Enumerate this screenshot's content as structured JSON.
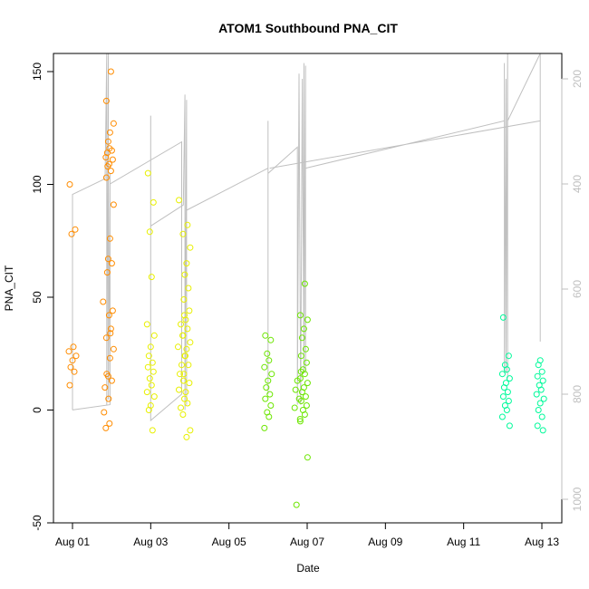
{
  "chart_data": {
    "type": "scatter",
    "title": "ATOM1 Southbound PNA_CIT",
    "xlabel": "Date",
    "ylabel": "PNA_CIT",
    "xlim": [
      "2023-08-01",
      "2023-08-13"
    ],
    "x_ticks": [
      "Aug 01",
      "Aug 03",
      "Aug 05",
      "Aug 07",
      "Aug 09",
      "Aug 11",
      "Aug 13"
    ],
    "ylim": [
      -50,
      150
    ],
    "y_ticks": [
      -50,
      0,
      50,
      100,
      150
    ],
    "y2_ticks": [
      200,
      400,
      600,
      800,
      1000
    ],
    "y2_range": [
      1050,
      150
    ],
    "grid": false,
    "series": [
      {
        "color": "#FF8C00",
        "points": [
          {
            "x": "2023-08-01 00:00",
            "y": 100
          },
          {
            "x": "2023-08-01 00:00",
            "y": 80
          },
          {
            "x": "2023-08-01 00:00",
            "y": 78
          },
          {
            "x": "2023-08-01 00:00",
            "y": 28
          },
          {
            "x": "2023-08-01 00:00",
            "y": 26
          },
          {
            "x": "2023-08-01 00:00",
            "y": 24
          },
          {
            "x": "2023-08-01 00:00",
            "y": 22
          },
          {
            "x": "2023-08-01 00:00",
            "y": 19
          },
          {
            "x": "2023-08-01 00:00",
            "y": 17
          },
          {
            "x": "2023-08-01 00:00",
            "y": 11
          },
          {
            "x": "2023-08-01 21:00",
            "y": 116
          },
          {
            "x": "2023-08-01 21:00",
            "y": 112
          },
          {
            "x": "2023-08-01 21:00",
            "y": 108
          },
          {
            "x": "2023-08-01 21:00",
            "y": 48
          },
          {
            "x": "2023-08-01 21:00",
            "y": 34
          },
          {
            "x": "2023-08-01 21:00",
            "y": 16
          },
          {
            "x": "2023-08-01 21:00",
            "y": 10
          },
          {
            "x": "2023-08-01 21:00",
            "y": 5
          },
          {
            "x": "2023-08-01 21:00",
            "y": -1
          },
          {
            "x": "2023-08-01 21:00",
            "y": -6
          },
          {
            "x": "2023-08-01 21:00",
            "y": -8
          },
          {
            "x": "2023-08-01 23:00",
            "y": 150
          },
          {
            "x": "2023-08-01 23:00",
            "y": 137
          },
          {
            "x": "2023-08-01 23:00",
            "y": 127
          },
          {
            "x": "2023-08-01 23:00",
            "y": 123
          },
          {
            "x": "2023-08-01 23:00",
            "y": 119
          },
          {
            "x": "2023-08-01 23:00",
            "y": 115
          },
          {
            "x": "2023-08-01 23:00",
            "y": 114
          },
          {
            "x": "2023-08-01 23:00",
            "y": 111
          },
          {
            "x": "2023-08-01 23:00",
            "y": 109
          },
          {
            "x": "2023-08-01 23:00",
            "y": 106
          },
          {
            "x": "2023-08-01 23:00",
            "y": 103
          },
          {
            "x": "2023-08-01 23:00",
            "y": 91
          },
          {
            "x": "2023-08-01 23:00",
            "y": 76
          },
          {
            "x": "2023-08-01 23:00",
            "y": 67
          },
          {
            "x": "2023-08-01 23:00",
            "y": 65
          },
          {
            "x": "2023-08-01 23:00",
            "y": 61
          },
          {
            "x": "2023-08-01 23:00",
            "y": 44
          },
          {
            "x": "2023-08-01 23:00",
            "y": 42
          },
          {
            "x": "2023-08-01 23:00",
            "y": 36
          },
          {
            "x": "2023-08-01 23:00",
            "y": 32
          },
          {
            "x": "2023-08-01 23:00",
            "y": 27
          },
          {
            "x": "2023-08-01 23:00",
            "y": 23
          },
          {
            "x": "2023-08-01 23:00",
            "y": 15
          },
          {
            "x": "2023-08-01 23:00",
            "y": 13
          }
        ]
      },
      {
        "color": "#E8F000",
        "points": [
          {
            "x": "2023-08-03 00:00",
            "y": 105
          },
          {
            "x": "2023-08-03 00:00",
            "y": 92
          },
          {
            "x": "2023-08-03 00:00",
            "y": 79
          },
          {
            "x": "2023-08-03 00:00",
            "y": 59
          },
          {
            "x": "2023-08-03 00:00",
            "y": 38
          },
          {
            "x": "2023-08-03 00:00",
            "y": 33
          },
          {
            "x": "2023-08-03 00:00",
            "y": 28
          },
          {
            "x": "2023-08-03 00:00",
            "y": 24
          },
          {
            "x": "2023-08-03 00:00",
            "y": 21
          },
          {
            "x": "2023-08-03 00:00",
            "y": 19
          },
          {
            "x": "2023-08-03 00:00",
            "y": 17
          },
          {
            "x": "2023-08-03 00:00",
            "y": 14
          },
          {
            "x": "2023-08-03 00:00",
            "y": 11
          },
          {
            "x": "2023-08-03 00:00",
            "y": 8
          },
          {
            "x": "2023-08-03 00:00",
            "y": 6
          },
          {
            "x": "2023-08-03 00:00",
            "y": 2
          },
          {
            "x": "2023-08-03 00:00",
            "y": 0
          },
          {
            "x": "2023-08-03 00:00",
            "y": -9
          },
          {
            "x": "2023-08-03 19:00",
            "y": 93
          },
          {
            "x": "2023-08-03 19:00",
            "y": 42
          },
          {
            "x": "2023-08-03 19:00",
            "y": 38
          },
          {
            "x": "2023-08-03 19:00",
            "y": 33
          },
          {
            "x": "2023-08-03 19:00",
            "y": 28
          },
          {
            "x": "2023-08-03 19:00",
            "y": 24
          },
          {
            "x": "2023-08-03 19:00",
            "y": 20
          },
          {
            "x": "2023-08-03 19:00",
            "y": 16
          },
          {
            "x": "2023-08-03 19:00",
            "y": 13
          },
          {
            "x": "2023-08-03 19:00",
            "y": 9
          },
          {
            "x": "2023-08-03 19:00",
            "y": 5
          },
          {
            "x": "2023-08-03 19:00",
            "y": 1
          },
          {
            "x": "2023-08-03 22:00",
            "y": 82
          },
          {
            "x": "2023-08-03 22:00",
            "y": 78
          },
          {
            "x": "2023-08-03 22:00",
            "y": 72
          },
          {
            "x": "2023-08-03 22:00",
            "y": 65
          },
          {
            "x": "2023-08-03 22:00",
            "y": 60
          },
          {
            "x": "2023-08-03 22:00",
            "y": 54
          },
          {
            "x": "2023-08-03 22:00",
            "y": 49
          },
          {
            "x": "2023-08-03 22:00",
            "y": 44
          },
          {
            "x": "2023-08-03 22:00",
            "y": 40
          },
          {
            "x": "2023-08-03 22:00",
            "y": 36
          },
          {
            "x": "2023-08-03 22:00",
            "y": 33
          },
          {
            "x": "2023-08-03 22:00",
            "y": 30
          },
          {
            "x": "2023-08-03 22:00",
            "y": 27
          },
          {
            "x": "2023-08-03 22:00",
            "y": 24
          },
          {
            "x": "2023-08-03 22:00",
            "y": 20
          },
          {
            "x": "2023-08-03 22:00",
            "y": 16
          },
          {
            "x": "2023-08-03 22:00",
            "y": 12
          },
          {
            "x": "2023-08-03 22:00",
            "y": 8
          },
          {
            "x": "2023-08-03 22:00",
            "y": 3
          },
          {
            "x": "2023-08-03 22:00",
            "y": -2
          },
          {
            "x": "2023-08-03 22:00",
            "y": -9
          },
          {
            "x": "2023-08-03 22:00",
            "y": -12
          }
        ]
      },
      {
        "color": "#6CE600",
        "points": [
          {
            "x": "2023-08-06 00:00",
            "y": 33
          },
          {
            "x": "2023-08-06 00:00",
            "y": 31
          },
          {
            "x": "2023-08-06 00:00",
            "y": 25
          },
          {
            "x": "2023-08-06 00:00",
            "y": 22
          },
          {
            "x": "2023-08-06 00:00",
            "y": 19
          },
          {
            "x": "2023-08-06 00:00",
            "y": 16
          },
          {
            "x": "2023-08-06 00:00",
            "y": 13
          },
          {
            "x": "2023-08-06 00:00",
            "y": 10
          },
          {
            "x": "2023-08-06 00:00",
            "y": 7
          },
          {
            "x": "2023-08-06 00:00",
            "y": 5
          },
          {
            "x": "2023-08-06 00:00",
            "y": 2
          },
          {
            "x": "2023-08-06 00:00",
            "y": -1
          },
          {
            "x": "2023-08-06 00:00",
            "y": -3
          },
          {
            "x": "2023-08-06 00:00",
            "y": -8
          },
          {
            "x": "2023-08-06 18:00",
            "y": 17
          },
          {
            "x": "2023-08-06 18:00",
            "y": 13
          },
          {
            "x": "2023-08-06 18:00",
            "y": 9
          },
          {
            "x": "2023-08-06 18:00",
            "y": 5
          },
          {
            "x": "2023-08-06 18:00",
            "y": 1
          },
          {
            "x": "2023-08-06 18:00",
            "y": -4
          },
          {
            "x": "2023-08-06 18:00",
            "y": -42
          },
          {
            "x": "2023-08-06 22:00",
            "y": 56
          },
          {
            "x": "2023-08-06 22:00",
            "y": 42
          },
          {
            "x": "2023-08-06 22:00",
            "y": 40
          },
          {
            "x": "2023-08-06 22:00",
            "y": 36
          },
          {
            "x": "2023-08-06 22:00",
            "y": 32
          },
          {
            "x": "2023-08-06 22:00",
            "y": 27
          },
          {
            "x": "2023-08-06 22:00",
            "y": 24
          },
          {
            "x": "2023-08-06 22:00",
            "y": 21
          },
          {
            "x": "2023-08-06 22:00",
            "y": 18
          },
          {
            "x": "2023-08-06 22:00",
            "y": 16
          },
          {
            "x": "2023-08-06 22:00",
            "y": 14
          },
          {
            "x": "2023-08-06 22:00",
            "y": 12
          },
          {
            "x": "2023-08-06 22:00",
            "y": 10
          },
          {
            "x": "2023-08-06 22:00",
            "y": 8
          },
          {
            "x": "2023-08-06 22:00",
            "y": 6
          },
          {
            "x": "2023-08-06 22:00",
            "y": 4
          },
          {
            "x": "2023-08-06 22:00",
            "y": 2
          },
          {
            "x": "2023-08-06 22:00",
            "y": 0
          },
          {
            "x": "2023-08-06 22:00",
            "y": -2
          },
          {
            "x": "2023-08-06 22:00",
            "y": -5
          },
          {
            "x": "2023-08-06 22:00",
            "y": -21
          }
        ]
      },
      {
        "color": "#00FA9A",
        "points": [
          {
            "x": "2023-08-12 02:00",
            "y": 41
          },
          {
            "x": "2023-08-12 02:00",
            "y": 24
          },
          {
            "x": "2023-08-12 02:00",
            "y": 20
          },
          {
            "x": "2023-08-12 02:00",
            "y": 18
          },
          {
            "x": "2023-08-12 02:00",
            "y": 16
          },
          {
            "x": "2023-08-12 02:00",
            "y": 14
          },
          {
            "x": "2023-08-12 02:00",
            "y": 12
          },
          {
            "x": "2023-08-12 02:00",
            "y": 10
          },
          {
            "x": "2023-08-12 02:00",
            "y": 8
          },
          {
            "x": "2023-08-12 02:00",
            "y": 6
          },
          {
            "x": "2023-08-12 02:00",
            "y": 4
          },
          {
            "x": "2023-08-12 02:00",
            "y": 2
          },
          {
            "x": "2023-08-12 02:00",
            "y": 0
          },
          {
            "x": "2023-08-12 02:00",
            "y": -3
          },
          {
            "x": "2023-08-12 02:00",
            "y": -7
          },
          {
            "x": "2023-08-12 23:00",
            "y": 22
          },
          {
            "x": "2023-08-12 23:00",
            "y": 20
          },
          {
            "x": "2023-08-12 23:00",
            "y": 17
          },
          {
            "x": "2023-08-12 23:00",
            "y": 15
          },
          {
            "x": "2023-08-12 23:00",
            "y": 13
          },
          {
            "x": "2023-08-12 23:00",
            "y": 11
          },
          {
            "x": "2023-08-12 23:00",
            "y": 9
          },
          {
            "x": "2023-08-12 23:00",
            "y": 7
          },
          {
            "x": "2023-08-12 23:00",
            "y": 5
          },
          {
            "x": "2023-08-12 23:00",
            "y": 3
          },
          {
            "x": "2023-08-12 23:00",
            "y": 0
          },
          {
            "x": "2023-08-12 23:00",
            "y": -3
          },
          {
            "x": "2023-08-12 23:00",
            "y": -7
          },
          {
            "x": "2023-08-12 23:00",
            "y": -9
          }
        ]
      }
    ],
    "line_series": {
      "color": "#C0C0C0",
      "axis": "right",
      "segments": [
        [
          {
            "x": "2023-08-01 00:00",
            "y": 740
          },
          {
            "x": "2023-08-01 00:00",
            "y": 600
          },
          {
            "x": "2023-08-01 00:00",
            "y": 830
          },
          {
            "x": "2023-08-01 00:00",
            "y": 420
          },
          {
            "x": "2023-08-01 20:00",
            "y": 390
          },
          {
            "x": "2023-08-01 21:00",
            "y": 150
          },
          {
            "x": "2023-08-01 21:00",
            "y": 820
          },
          {
            "x": "2023-08-01 22:00",
            "y": 150
          },
          {
            "x": "2023-08-01 22:00",
            "y": 810
          },
          {
            "x": "2023-08-01 23:00",
            "y": 380
          },
          {
            "x": "2023-08-01 23:00",
            "y": 700
          },
          {
            "x": "2023-08-01 23:00",
            "y": 820
          },
          {
            "x": "2023-08-01 00:00",
            "y": 830
          }
        ],
        [
          {
            "x": "2023-08-01 23:00",
            "y": 400
          },
          {
            "x": "2023-08-03 19:00",
            "y": 320
          },
          {
            "x": "2023-08-03 19:00",
            "y": 800
          },
          {
            "x": "2023-08-03 00:00",
            "y": 850
          },
          {
            "x": "2023-08-03 00:00",
            "y": 270
          },
          {
            "x": "2023-08-03 00:00",
            "y": 820
          },
          {
            "x": "2023-08-03 00:00",
            "y": 480
          },
          {
            "x": "2023-08-03 20:00",
            "y": 440
          },
          {
            "x": "2023-08-03 21:00",
            "y": 230
          },
          {
            "x": "2023-08-03 21:00",
            "y": 830
          },
          {
            "x": "2023-08-03 22:00",
            "y": 240
          },
          {
            "x": "2023-08-03 22:00",
            "y": 820
          }
        ],
        [
          {
            "x": "2023-08-03 22:00",
            "y": 450
          },
          {
            "x": "2023-08-06 00:00",
            "y": 370
          },
          {
            "x": "2023-08-06 00:00",
            "y": 280
          },
          {
            "x": "2023-08-06 00:00",
            "y": 790
          },
          {
            "x": "2023-08-06 00:00",
            "y": 300
          },
          {
            "x": "2023-08-06 00:00",
            "y": 800
          },
          {
            "x": "2023-08-06 00:00",
            "y": 380
          },
          {
            "x": "2023-08-06 18:00",
            "y": 330
          },
          {
            "x": "2023-08-06 18:00",
            "y": 820
          },
          {
            "x": "2023-08-06 19:00",
            "y": 190
          },
          {
            "x": "2023-08-06 20:00",
            "y": 820
          },
          {
            "x": "2023-08-06 21:00",
            "y": 200
          },
          {
            "x": "2023-08-06 22:00",
            "y": 760
          },
          {
            "x": "2023-08-06 22:00",
            "y": 170
          },
          {
            "x": "2023-08-06 23:00",
            "y": 760
          },
          {
            "x": "2023-08-06 23:00",
            "y": 175
          },
          {
            "x": "2023-08-06 23:00",
            "y": 360
          }
        ],
        [
          {
            "x": "2023-08-06 23:00",
            "y": 370
          },
          {
            "x": "2023-08-12 01:00",
            "y": 280
          },
          {
            "x": "2023-08-12 01:00",
            "y": 170
          },
          {
            "x": "2023-08-12 01:00",
            "y": 760
          },
          {
            "x": "2023-08-12 02:00",
            "y": 200
          },
          {
            "x": "2023-08-12 02:00",
            "y": 760
          },
          {
            "x": "2023-08-12 03:00",
            "y": 150
          },
          {
            "x": "2023-08-12 03:00",
            "y": 770
          },
          {
            "x": "2023-08-12 03:00",
            "y": 280
          },
          {
            "x": "2023-08-12 23:00",
            "y": 150
          },
          {
            "x": "2023-08-12 23:00",
            "y": 700
          },
          {
            "x": "2023-08-12 23:00",
            "y": 280
          },
          {
            "x": "2023-08-06 01:00",
            "y": 370
          }
        ]
      ]
    }
  }
}
